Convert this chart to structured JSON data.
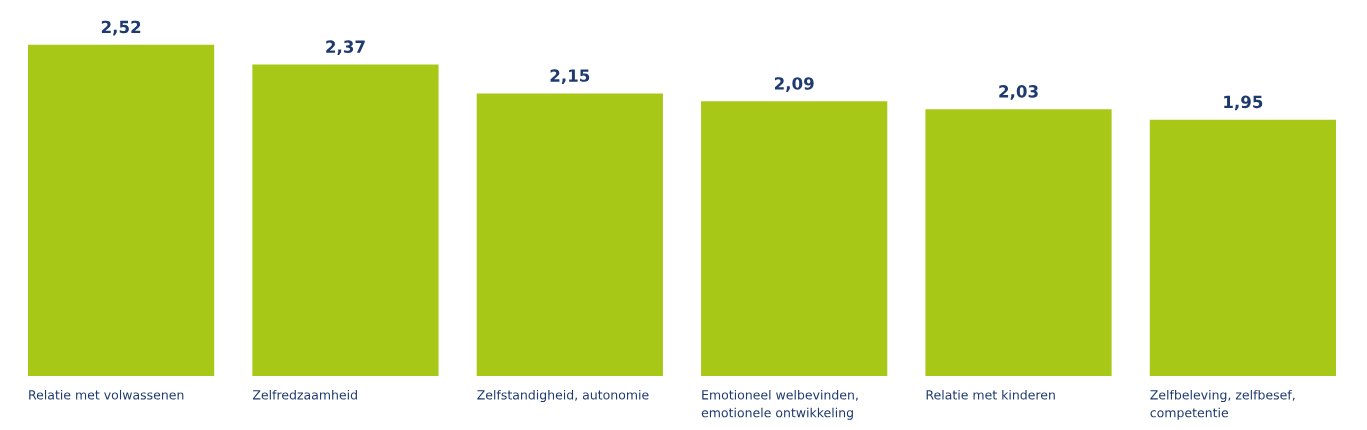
{
  "chart_data": {
    "type": "bar",
    "categories": [
      "Relatie met volwassenen",
      "Zelfredzaamheid",
      "Zelfstandigheid, autonomie",
      "Emotioneel welbevinden,\nemotionele ontwikkeling",
      "Relatie met kinderen",
      "Zelfbeleving, zelfbesef,\ncompetentie"
    ],
    "values": [
      2.52,
      2.37,
      2.15,
      2.09,
      2.03,
      1.95
    ],
    "value_labels": [
      "2,52",
      "2,37",
      "2,15",
      "2,09",
      "2,03",
      "1,95"
    ],
    "color": "#a8c818",
    "tick_labels": "x"
  }
}
